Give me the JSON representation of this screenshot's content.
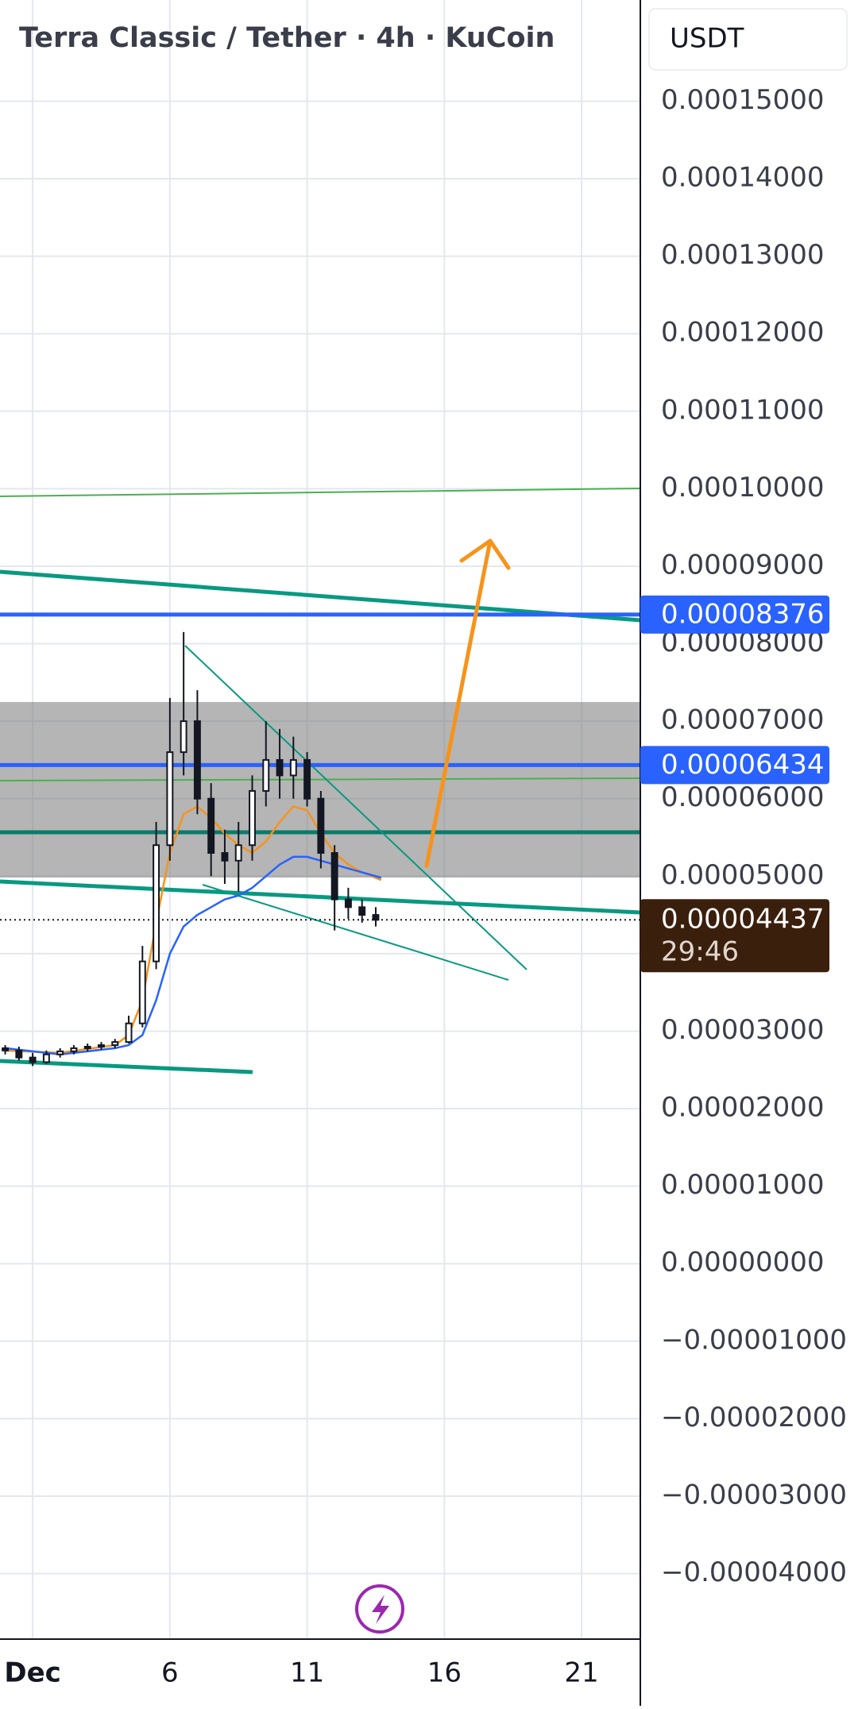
{
  "header": {
    "title": "Terra Classic / Tether · 4h · KuCoin",
    "currency": "USDT"
  },
  "chart_data": {
    "type": "candlestick",
    "x": [
      0,
      0.5,
      1,
      1.5,
      2,
      2.5,
      3,
      3.5,
      4,
      4.5,
      5,
      5.5,
      6,
      6.5,
      7,
      7.5,
      8,
      8.5,
      9,
      9.5,
      10,
      10.5,
      11,
      11.5,
      12,
      12.5,
      13,
      13.5
    ],
    "open": [
      2.78e-05,
      2.75e-05,
      2.66e-05,
      2.6e-05,
      2.7e-05,
      2.74e-05,
      2.78e-05,
      2.8e-05,
      2.82e-05,
      2.86e-05,
      3.1e-05,
      3.9e-05,
      5.4e-05,
      6.6e-05,
      7e-05,
      6e-05,
      5.3e-05,
      5.2e-05,
      5.4e-05,
      6.1e-05,
      6.5e-05,
      6.3e-05,
      6.5e-05,
      6e-05,
      5.3e-05,
      4.7e-05,
      4.6e-05,
      4.5e-05
    ],
    "high": [
      2.82e-05,
      2.8e-05,
      2.72e-05,
      2.75e-05,
      2.78e-05,
      2.82e-05,
      2.84e-05,
      2.86e-05,
      2.9e-05,
      3.2e-05,
      4.1e-05,
      5.7e-05,
      7.3e-05,
      8.15e-05,
      7.4e-05,
      6.2e-05,
      5.6e-05,
      5.7e-05,
      6.3e-05,
      7e-05,
      6.9e-05,
      6.8e-05,
      6.6e-05,
      6.1e-05,
      5.4e-05,
      4.85e-05,
      4.7e-05,
      4.6e-05
    ],
    "low": [
      2.7e-05,
      2.62e-05,
      2.55e-05,
      2.58e-05,
      2.66e-05,
      2.7e-05,
      2.74e-05,
      2.76e-05,
      2.78e-05,
      2.84e-05,
      3.05e-05,
      3.8e-05,
      5.2e-05,
      6.3e-05,
      5.8e-05,
      5e-05,
      4.9e-05,
      4.8e-05,
      5.2e-05,
      5.9e-05,
      6e-05,
      6e-05,
      5.9e-05,
      5.1e-05,
      4.3e-05,
      4.45e-05,
      4.4e-05,
      4.35e-05
    ],
    "close": [
      2.75e-05,
      2.66e-05,
      2.6e-05,
      2.7e-05,
      2.74e-05,
      2.78e-05,
      2.8e-05,
      2.82e-05,
      2.86e-05,
      3.1e-05,
      3.9e-05,
      5.4e-05,
      6.6e-05,
      7e-05,
      6e-05,
      5.3e-05,
      5.2e-05,
      5.4e-05,
      6.1e-05,
      6.5e-05,
      6.3e-05,
      6.5e-05,
      6e-05,
      5.3e-05,
      4.7e-05,
      4.6e-05,
      4.5e-05,
      4.437e-05
    ],
    "candle_color": "#131722",
    "overlay_x": [
      0,
      2,
      4,
      4.5,
      5,
      5.5,
      6,
      6.5,
      7,
      7.5,
      8,
      8.5,
      9,
      9.5,
      10,
      10.5,
      11,
      11.5,
      12,
      12.5,
      13,
      13.7
    ],
    "overlays": [
      {
        "color": "#f7931a",
        "values": [
          2.75e-05,
          2.72e-05,
          2.82e-05,
          2.95e-05,
          3.4e-05,
          4.4e-05,
          5.3e-05,
          5.8e-05,
          5.9e-05,
          5.75e-05,
          5.55e-05,
          5.4e-05,
          5.3e-05,
          5.45e-05,
          5.7e-05,
          5.9e-05,
          5.85e-05,
          5.55e-05,
          5.3e-05,
          5.15e-05,
          5.05e-05,
          4.95e-05
        ]
      },
      {
        "color": "#2962ff",
        "values": [
          2.78e-05,
          2.7e-05,
          2.78e-05,
          2.82e-05,
          2.95e-05,
          3.4e-05,
          4e-05,
          4.35e-05,
          4.5e-05,
          4.6e-05,
          4.7e-05,
          4.75e-05,
          4.85e-05,
          5e-05,
          5.15e-05,
          5.25e-05,
          5.25e-05,
          5.2e-05,
          5.15e-05,
          5.1e-05,
          5.05e-05,
          4.98e-05
        ]
      }
    ],
    "xlim": [
      -0.19,
      23.14
    ],
    "ylim": [
      -4.845e-05,
      0.00016306
    ],
    "xticks": [
      {
        "value": 1,
        "label": "Dec"
      },
      6,
      11,
      16,
      21
    ],
    "yticks": [
      {
        "value": 0.00015,
        "label": "0.00015000"
      },
      {
        "value": 0.00014,
        "label": "0.00014000"
      },
      {
        "value": 0.00013,
        "label": "0.00013000"
      },
      {
        "value": 0.00012,
        "label": "0.00012000"
      },
      {
        "value": 0.00011,
        "label": "0.00011000"
      },
      {
        "value": 0.0001,
        "label": "0.00010000"
      },
      {
        "value": 9e-05,
        "label": "0.00009000"
      },
      {
        "value": 8e-05,
        "label": "0.00008000"
      },
      {
        "value": 7e-05,
        "label": "0.00007000"
      },
      {
        "value": 6e-05,
        "label": "0.00006000"
      },
      {
        "value": 5e-05,
        "label": "0.00005000"
      },
      {
        "value": 4e-05,
        "label": "0.00004000"
      },
      {
        "value": 3e-05,
        "label": "0.00003000"
      },
      {
        "value": 2e-05,
        "label": "0.00002000"
      },
      {
        "value": 1e-05,
        "label": "0.00001000"
      },
      {
        "value": 0,
        "label": "0.00000000"
      },
      {
        "value": -1e-05,
        "label": "−0.00001000"
      },
      {
        "value": -2e-05,
        "label": "−0.00002000"
      },
      {
        "value": -3e-05,
        "label": "−0.00003000"
      },
      {
        "value": -4e-05,
        "label": "−0.00004000"
      }
    ],
    "grid": true,
    "price_tags": [
      {
        "value": 8.376e-05,
        "label": "0.00008376",
        "color": "#2962ff"
      },
      {
        "value": 6.434e-05,
        "label": "0.00006434",
        "color": "#2962ff"
      }
    ],
    "last_price": {
      "value": 4.437e-05,
      "label": "0.00004437",
      "countdown": "29:46",
      "color": "#3b1f0d"
    }
  }
}
